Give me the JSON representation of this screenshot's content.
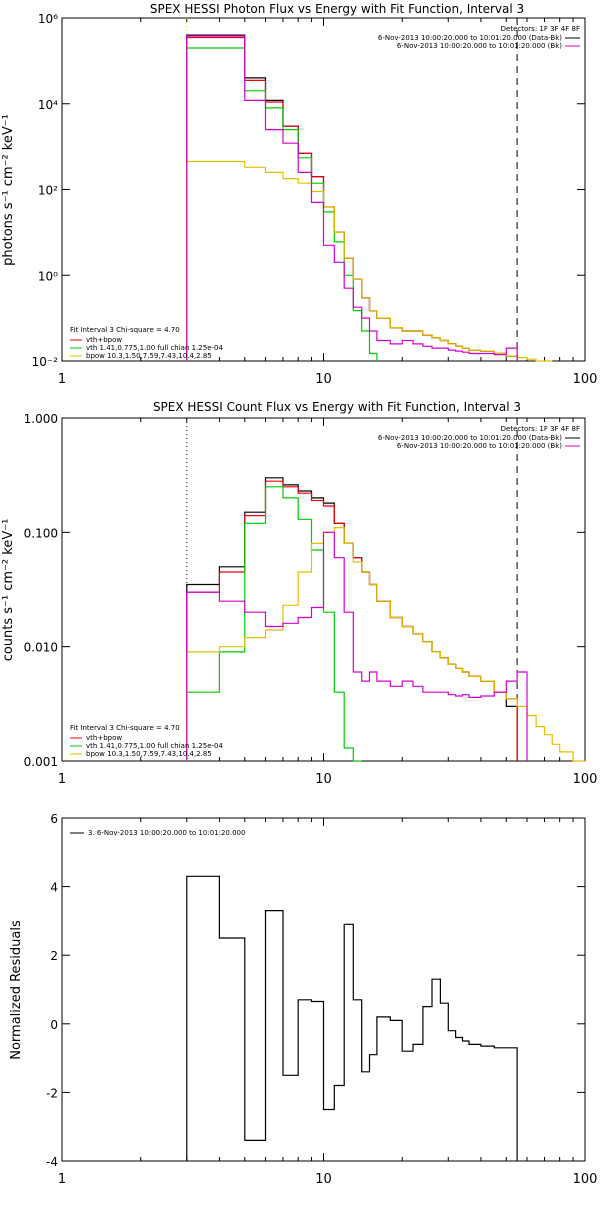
{
  "colors": {
    "data": "#000000",
    "total": "#e8000b",
    "vth": "#00cc00",
    "bpow": "#e6c000",
    "bk": "#d400d4",
    "axis": "#000000"
  },
  "chart_data": [
    {
      "type": "line",
      "title": "SPEX HESSI Photon Flux vs Energy with Fit Function, Interval 3",
      "ylabel": "photons s⁻¹ cm⁻² keV⁻¹",
      "xscale": "log",
      "yscale": "log",
      "xlim": [
        1,
        100
      ],
      "ylim": [
        0.01,
        1000000
      ],
      "xticks": [
        {
          "v": 1,
          "label": "1"
        },
        {
          "v": 10,
          "label": "10"
        },
        {
          "v": 100,
          "label": "100"
        }
      ],
      "yticks": [
        {
          "v": 0.01,
          "label": "10⁻²"
        },
        {
          "v": 1,
          "label": "10⁰"
        },
        {
          "v": 100,
          "label": "10²"
        },
        {
          "v": 10000,
          "label": "10⁴"
        },
        {
          "v": 1000000,
          "label": "10⁶"
        }
      ],
      "vlines": [
        {
          "x": 3,
          "style": "dotted",
          "color": "#e6c000"
        },
        {
          "x": 55,
          "style": "dashed",
          "color": "#000000"
        }
      ],
      "edges": [
        3,
        4,
        5,
        6,
        7,
        8,
        9,
        10,
        11,
        12,
        13,
        14,
        15,
        16,
        18,
        20,
        22,
        24,
        26,
        28,
        30,
        32,
        34,
        36,
        40,
        45,
        50,
        55,
        60,
        65,
        70,
        75
      ],
      "legend_right": {
        "header": "Detectors: 1F 3F 4F 8F",
        "entries": [
          {
            "text": "6-Nov-2013 10:00:20.000 to 10:01:20.000 (Data-Bk)",
            "color": "#000000"
          },
          {
            "text": "6-Nov-2013 10:00:20.000 to 10:01:20.000 (Bk)",
            "color": "#d400d4"
          }
        ]
      },
      "legend_left": {
        "header": "Fit Interval 3   Chi-square = 4.70",
        "entries": [
          {
            "text": "vth+bpow",
            "color": "#e8000b"
          },
          {
            "text": "vth 1.41,0.775,1.00  full chian 1.25e-04",
            "color": "#00cc00"
          },
          {
            "text": "bpow 10.3,1.50,7.59,7.43,10.4,2.85",
            "color": "#e6c000"
          }
        ]
      },
      "series": [
        {
          "name": "Data-Bk",
          "color": "#000000",
          "values": [
            400000,
            400000,
            40000,
            12000,
            3000,
            700,
            200,
            40,
            10,
            2.5,
            0.8,
            0.3,
            0.15,
            0.1,
            0.06,
            0.05,
            0.05,
            0.04,
            0.035,
            0.03,
            0.025,
            0.022,
            0.02,
            0.018,
            0.017,
            0.015,
            0.013,
            null,
            null,
            null,
            null
          ]
        },
        {
          "name": "vth+bpow",
          "color": "#e8000b",
          "values": [
            350000,
            350000,
            35000,
            11000,
            3000,
            700,
            200,
            40,
            10,
            2.5,
            0.8,
            0.3,
            0.15,
            0.1,
            0.06,
            0.05,
            0.05,
            0.04,
            0.035,
            0.03,
            0.025,
            0.022,
            0.02,
            0.018,
            0.017,
            0.015,
            0.013,
            null,
            null,
            null,
            null
          ]
        },
        {
          "name": "vth",
          "color": "#00cc00",
          "values": [
            200000,
            200000,
            20000,
            8000,
            2500,
            550,
            140,
            30,
            6,
            1,
            0.15,
            0.05,
            0.015,
            null,
            null,
            null,
            null,
            null,
            null,
            null,
            null,
            null,
            null,
            null,
            null,
            null,
            null,
            null,
            null,
            null,
            null
          ]
        },
        {
          "name": "bpow",
          "color": "#e6c000",
          "values": [
            450,
            450,
            330,
            250,
            180,
            140,
            90,
            40,
            10,
            2.5,
            0.8,
            0.3,
            0.15,
            0.1,
            0.06,
            0.05,
            0.05,
            0.04,
            0.035,
            0.03,
            0.025,
            0.022,
            0.02,
            0.018,
            0.017,
            0.015,
            0.013,
            0.012,
            0.011,
            0.01,
            0.01
          ]
        },
        {
          "name": "Bk",
          "color": "#d400d4",
          "values": [
            380000,
            380000,
            12000,
            2500,
            1200,
            250,
            50,
            5,
            2,
            0.5,
            0.18,
            0.1,
            0.05,
            0.03,
            0.025,
            0.03,
            0.025,
            0.022,
            0.02,
            0.02,
            0.018,
            0.017,
            0.016,
            0.015,
            0.015,
            0.014,
            0.02,
            null,
            null,
            null,
            null
          ]
        }
      ]
    },
    {
      "type": "line",
      "title": "SPEX HESSI Count Flux vs Energy with Fit Function, Interval 3",
      "ylabel": "counts s⁻¹ cm⁻² keV⁻¹",
      "xscale": "log",
      "yscale": "log",
      "xlim": [
        1,
        100
      ],
      "ylim": [
        0.001,
        1.0
      ],
      "xticks": [
        {
          "v": 1,
          "label": "1"
        },
        {
          "v": 10,
          "label": "10"
        },
        {
          "v": 100,
          "label": "100"
        }
      ],
      "yticks": [
        {
          "v": 0.001,
          "label": "0.001"
        },
        {
          "v": 0.01,
          "label": "0.010"
        },
        {
          "v": 0.1,
          "label": "0.100"
        },
        {
          "v": 1.0,
          "label": "1.000"
        }
      ],
      "vlines": [
        {
          "x": 3,
          "style": "dotted",
          "color": "#000000"
        },
        {
          "x": 55,
          "style": "dashed",
          "color": "#000000"
        }
      ],
      "edges": [
        3,
        4,
        5,
        6,
        7,
        8,
        9,
        10,
        11,
        12,
        13,
        14,
        15,
        16,
        18,
        20,
        22,
        24,
        26,
        28,
        30,
        32,
        34,
        36,
        40,
        45,
        50,
        55,
        60,
        65,
        70,
        75,
        80,
        90,
        100
      ],
      "legend_right": {
        "header": "Detectors: 1F 3F 4F 8F",
        "entries": [
          {
            "text": "6-Nov-2013 10:00:20.000 to 10:01:20.000 (Data-Bk)",
            "color": "#000000"
          },
          {
            "text": "6-Nov-2013 10:00:20.000 to 10:01:20.000 (Bk)",
            "color": "#d400d4"
          }
        ]
      },
      "legend_left": {
        "header": "Fit Interval 3   Chi-square = 4.70",
        "entries": [
          {
            "text": "vth+bpow",
            "color": "#e8000b"
          },
          {
            "text": "vth 1.41,0.775,1.00  full chian 1.25e-04",
            "color": "#00cc00"
          },
          {
            "text": "bpow 10.3,1.50,7.59,7.43,10.4,2.85",
            "color": "#e6c000"
          }
        ]
      },
      "series": [
        {
          "name": "Data-Bk",
          "color": "#000000",
          "values": [
            0.035,
            0.05,
            0.15,
            0.3,
            0.26,
            0.23,
            0.2,
            0.18,
            0.12,
            0.08,
            0.06,
            0.045,
            0.035,
            0.025,
            0.018,
            0.015,
            0.013,
            0.011,
            0.009,
            0.008,
            0.007,
            0.0065,
            0.006,
            0.0055,
            0.005,
            0.004,
            0.003,
            null,
            null,
            null,
            null,
            null,
            null,
            null
          ]
        },
        {
          "name": "vth+bpow",
          "color": "#e8000b",
          "values": [
            0.03,
            0.045,
            0.14,
            0.28,
            0.25,
            0.22,
            0.19,
            0.17,
            0.12,
            0.08,
            0.06,
            0.045,
            0.035,
            0.025,
            0.018,
            0.015,
            0.013,
            0.011,
            0.009,
            0.008,
            0.007,
            0.0065,
            0.006,
            0.0055,
            0.005,
            0.004,
            0.0035,
            null,
            null,
            null,
            null,
            null,
            null,
            null
          ]
        },
        {
          "name": "vth",
          "color": "#00cc00",
          "values": [
            0.004,
            0.009,
            0.12,
            0.25,
            0.2,
            0.13,
            0.07,
            0.02,
            0.004,
            0.0013,
            0.001,
            null,
            null,
            null,
            null,
            null,
            null,
            null,
            null,
            null,
            null,
            null,
            null,
            null,
            null,
            null,
            null,
            null,
            null,
            null,
            null,
            null,
            null,
            null
          ]
        },
        {
          "name": "bpow",
          "color": "#e6c000",
          "values": [
            0.009,
            0.01,
            0.012,
            0.014,
            0.023,
            0.045,
            0.08,
            0.1,
            0.11,
            0.08,
            0.055,
            0.045,
            0.035,
            0.025,
            0.018,
            0.015,
            0.013,
            0.011,
            0.009,
            0.008,
            0.007,
            0.0065,
            0.006,
            0.0055,
            0.005,
            0.004,
            0.0035,
            0.003,
            0.0025,
            0.002,
            0.0017,
            0.0014,
            0.0012,
            0.001
          ]
        },
        {
          "name": "Bk",
          "color": "#d400d4",
          "values": [
            0.03,
            0.025,
            0.02,
            0.015,
            0.016,
            0.018,
            0.022,
            0.1,
            0.06,
            0.02,
            0.006,
            0.005,
            0.006,
            0.005,
            0.0045,
            0.005,
            0.0045,
            0.004,
            0.004,
            0.004,
            0.0038,
            0.0037,
            0.0038,
            0.0036,
            0.0037,
            0.004,
            0.005,
            0.006,
            null,
            null,
            null,
            null,
            null,
            null
          ]
        }
      ]
    },
    {
      "type": "line",
      "title": "",
      "ylabel": "Normalized Residuals",
      "xscale": "log",
      "yscale": "linear",
      "xlim": [
        1,
        100
      ],
      "ylim": [
        -4,
        6
      ],
      "xticks": [
        {
          "v": 1,
          "label": "1"
        },
        {
          "v": 10,
          "label": "10"
        },
        {
          "v": 100,
          "label": "100"
        }
      ],
      "yticks": [
        {
          "v": -4,
          "label": "-4"
        },
        {
          "v": -2,
          "label": "-2"
        },
        {
          "v": 0,
          "label": "0"
        },
        {
          "v": 2,
          "label": "2"
        },
        {
          "v": 4,
          "label": "4"
        },
        {
          "v": 6,
          "label": "6"
        }
      ],
      "edges": [
        3,
        4,
        5,
        6,
        7,
        8,
        9,
        10,
        11,
        12,
        13,
        14,
        15,
        16,
        18,
        20,
        22,
        24,
        26,
        28,
        30,
        32,
        34,
        36,
        40,
        45,
        50,
        55
      ],
      "legend_left": {
        "header": "",
        "entries": [
          {
            "text": "3. 6-Nov-2013 10:00:20.000 to 10:01:20.000",
            "color": "#000000"
          }
        ]
      },
      "series": [
        {
          "name": "3. 6-Nov-2013 10:00:20.000 to 10:01:20.000",
          "color": "#000000",
          "values": [
            4.3,
            2.5,
            -3.4,
            3.3,
            -1.5,
            0.7,
            0.65,
            -2.5,
            -1.8,
            2.9,
            0.7,
            -1.4,
            -0.9,
            0.2,
            0.1,
            -0.8,
            -0.6,
            0.5,
            1.3,
            0.6,
            -0.2,
            -0.4,
            -0.5,
            -0.6,
            -0.65,
            -0.7,
            -0.7
          ]
        }
      ]
    }
  ]
}
